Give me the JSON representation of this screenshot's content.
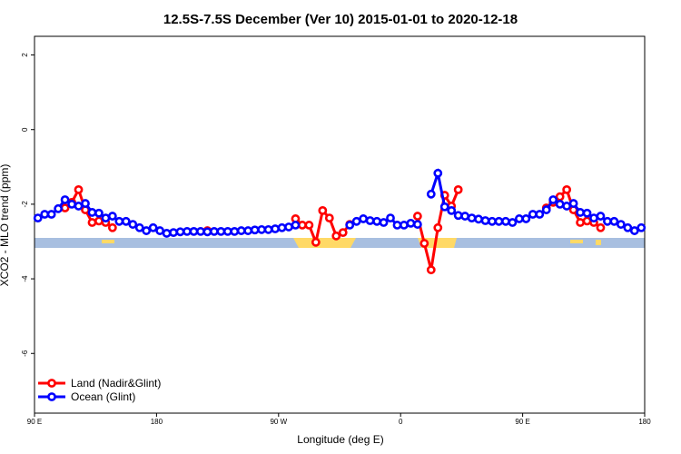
{
  "chart_data": {
    "type": "line",
    "title": "12.5S-7.5S December (Ver 10)   2015-01-01 to 2020-12-18",
    "x_label": "Longitude (deg E)",
    "y_label": "XCO2 - MLO trend (ppm)",
    "xlim": [
      90,
      540
    ],
    "xticks": [
      {
        "value": 90,
        "label": "90 E"
      },
      180,
      {
        "value": 270,
        "label": "90 W"
      },
      {
        "value": 360,
        "label": "0"
      },
      {
        "value": 450,
        "label": "90 E"
      },
      {
        "value": 540,
        "label": "180"
      }
    ],
    "ylim": [
      -7.6,
      2.5
    ],
    "yticks": [
      -6,
      -4,
      -2,
      0,
      2
    ],
    "legend": "bottom-left",
    "x": [
      92.5,
      97.5,
      102.5,
      107.5,
      112.5,
      117.5,
      122.5,
      127.5,
      132.5,
      137.5,
      142.5,
      147.5,
      152.5,
      157.5,
      162.5,
      167.5,
      172.5,
      177.5,
      182.5,
      187.5,
      192.5,
      197.5,
      202.5,
      207.5,
      212.5,
      217.5,
      222.5,
      227.5,
      232.5,
      237.5,
      242.5,
      247.5,
      252.5,
      257.5,
      262.5,
      267.5,
      272.5,
      277.5,
      282.5,
      287.5,
      292.5,
      297.5,
      302.5,
      307.5,
      312.5,
      317.5,
      322.5,
      327.5,
      332.5,
      337.5,
      342.5,
      347.5,
      352.5,
      357.5,
      362.5,
      367.5,
      372.5,
      377.5,
      382.5,
      387.5,
      392.5,
      397.5,
      402.5,
      407.5,
      412.5,
      417.5,
      422.5,
      427.5,
      432.5,
      437.5,
      442.5,
      447.5,
      452.5,
      457.5,
      462.5,
      467.5,
      472.5,
      477.5,
      482.5,
      487.5,
      492.5,
      497.5,
      502.5,
      507.5,
      512.5,
      517.5,
      522.5,
      527.5,
      532.5,
      537.5
    ],
    "series": [
      {
        "name": "Land (Nadir&Glint)",
        "color": "#ff0000",
        "values": [
          null,
          null,
          null,
          null,
          -2.1,
          -1.95,
          -1.61,
          -2.15,
          -2.49,
          -2.45,
          -2.49,
          -2.63,
          null,
          null,
          null,
          null,
          null,
          null,
          null,
          null,
          null,
          null,
          null,
          null,
          null,
          -2.71,
          null,
          null,
          null,
          null,
          null,
          null,
          null,
          null,
          null,
          null,
          null,
          null,
          -2.39,
          -2.56,
          -2.56,
          -3.02,
          -2.17,
          -2.37,
          -2.85,
          -2.76,
          -2.54,
          null,
          null,
          null,
          null,
          null,
          null,
          null,
          null,
          null,
          -2.32,
          -3.05,
          -3.76,
          -2.63,
          -1.76,
          -2.05,
          -1.61,
          null,
          null,
          null,
          null,
          null,
          null,
          null,
          null,
          null,
          null,
          null,
          null,
          -2.1,
          -1.95,
          -1.8,
          -1.61,
          -2.15,
          -2.49,
          -2.45,
          -2.49,
          -2.63,
          null,
          null,
          null,
          null,
          null,
          null
        ]
      },
      {
        "name": "Ocean (Glint)",
        "color": "#0000ff",
        "values": [
          -2.37,
          -2.27,
          -2.27,
          -2.12,
          -1.88,
          -2.0,
          -2.05,
          -1.98,
          -2.22,
          -2.24,
          -2.37,
          -2.32,
          -2.46,
          -2.46,
          -2.54,
          -2.63,
          -2.71,
          -2.63,
          -2.71,
          -2.78,
          -2.76,
          -2.74,
          -2.73,
          -2.73,
          -2.73,
          -2.74,
          -2.73,
          -2.73,
          -2.73,
          -2.73,
          -2.71,
          -2.71,
          -2.69,
          -2.68,
          -2.68,
          -2.66,
          -2.63,
          -2.61,
          -2.56,
          null,
          null,
          null,
          null,
          null,
          null,
          null,
          -2.56,
          -2.46,
          -2.39,
          -2.44,
          -2.46,
          -2.49,
          -2.37,
          -2.56,
          -2.56,
          -2.51,
          -2.54,
          null,
          -1.73,
          -1.17,
          -2.07,
          -2.17,
          -2.3,
          -2.32,
          -2.37,
          -2.4,
          -2.44,
          -2.46,
          -2.46,
          -2.46,
          -2.49,
          -2.39,
          -2.39,
          -2.27,
          -2.27,
          -2.15,
          -1.88,
          -2.0,
          -2.05,
          -1.98,
          -2.22,
          -2.24,
          -2.37,
          -2.32,
          -2.46,
          -2.46,
          -2.54,
          -2.63,
          -2.71,
          -2.63
        ]
      }
    ]
  }
}
